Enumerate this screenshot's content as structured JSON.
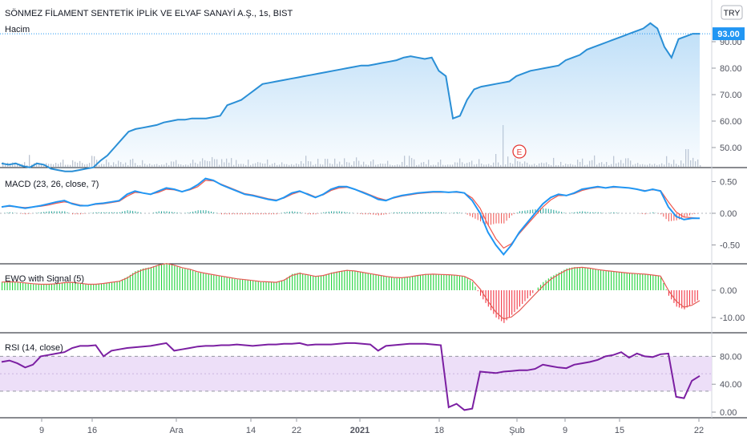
{
  "colors": {
    "price_line": "#2a8fd6",
    "area_top": "#b9dcf7",
    "volume": "#bcc3d0",
    "macd": "#2196f3",
    "signal": "#f0574d",
    "hist_pos": "#26a69a",
    "hist_neg": "#ef5350",
    "ewo_pos": "#22d33c",
    "ewo_neg": "#f23645",
    "ewo_signal": "#e55b55",
    "rsi": "#7b1fa2",
    "rsi_band": "#ead9f7",
    "price_label": "#2196f3",
    "earnings": "#e53935"
  },
  "header": {
    "title": "SÖNMEZ FİLAMENT SENTETİK İPLİK VE ELYAF SANAYİ A.Ş., 1s, BIST",
    "volume_label": "Hacim",
    "currency": "TRY"
  },
  "time_axis": {
    "labels": [
      "9",
      "16",
      "Ara",
      "14",
      "22",
      "2021",
      "18",
      "Şub",
      "9",
      "15",
      "22"
    ],
    "bold": [
      "2021"
    ]
  },
  "chart_data": [
    {
      "type": "area",
      "name": "price",
      "y_ticks": [
        "50.00",
        "60.00",
        "70.00",
        "80.00",
        "90.00"
      ],
      "last_value": "93.00",
      "earnings_marker": "E",
      "values": [
        44,
        43.5,
        44,
        43,
        42.5,
        44,
        43.5,
        42,
        41.5,
        41,
        41,
        41.5,
        42,
        42.5,
        45,
        47,
        50,
        53,
        56,
        57,
        57.5,
        58,
        58.5,
        59.5,
        60,
        60.5,
        60.5,
        61,
        61,
        61,
        61.5,
        62,
        66,
        67,
        68,
        70,
        72,
        74,
        74.5,
        75,
        75.5,
        76,
        76.5,
        77,
        77.5,
        78,
        78.5,
        79,
        79.5,
        80,
        80.5,
        81,
        81,
        81.5,
        82,
        82.5,
        83,
        84,
        84.5,
        84,
        83.5,
        84,
        79,
        77,
        61,
        62,
        68,
        72,
        73,
        73.5,
        74,
        74.5,
        75,
        77,
        78,
        79,
        79.5,
        80,
        80.5,
        81,
        83,
        84,
        85,
        87,
        88,
        89,
        90,
        91,
        92,
        93,
        94,
        95,
        97,
        95,
        88,
        84,
        91,
        92,
        93,
        93
      ]
    },
    {
      "type": "line",
      "name": "MACD (23, 26, close, 7)",
      "y_ticks": [
        "0.50",
        "0.00",
        "-0.50"
      ],
      "series": [
        {
          "name": "MACD",
          "values": [
            0.1,
            0.12,
            0.1,
            0.08,
            0.1,
            0.12,
            0.15,
            0.18,
            0.2,
            0.15,
            0.12,
            0.12,
            0.15,
            0.16,
            0.18,
            0.2,
            0.3,
            0.35,
            0.32,
            0.3,
            0.35,
            0.4,
            0.38,
            0.34,
            0.38,
            0.45,
            0.55,
            0.52,
            0.45,
            0.4,
            0.35,
            0.3,
            0.28,
            0.25,
            0.22,
            0.2,
            0.25,
            0.32,
            0.35,
            0.3,
            0.25,
            0.3,
            0.38,
            0.42,
            0.42,
            0.38,
            0.33,
            0.28,
            0.22,
            0.2,
            0.25,
            0.28,
            0.3,
            0.32,
            0.33,
            0.34,
            0.34,
            0.33,
            0.34,
            0.32,
            0.2,
            0.0,
            -0.3,
            -0.5,
            -0.65,
            -0.5,
            -0.3,
            -0.15,
            0.0,
            0.15,
            0.25,
            0.3,
            0.28,
            0.32,
            0.38,
            0.4,
            0.42,
            0.4,
            0.42,
            0.41,
            0.4,
            0.38,
            0.35,
            0.38,
            0.35,
            0.1,
            -0.05,
            -0.1,
            -0.08,
            -0.08
          ]
        },
        {
          "name": "Signal",
          "values": [
            0.1,
            0.11,
            0.1,
            0.09,
            0.1,
            0.11,
            0.13,
            0.16,
            0.18,
            0.16,
            0.13,
            0.12,
            0.14,
            0.15,
            0.17,
            0.19,
            0.27,
            0.33,
            0.32,
            0.3,
            0.33,
            0.38,
            0.37,
            0.34,
            0.37,
            0.42,
            0.52,
            0.51,
            0.46,
            0.41,
            0.36,
            0.31,
            0.29,
            0.26,
            0.23,
            0.21,
            0.24,
            0.3,
            0.34,
            0.31,
            0.26,
            0.29,
            0.36,
            0.4,
            0.41,
            0.38,
            0.34,
            0.29,
            0.24,
            0.21,
            0.24,
            0.27,
            0.29,
            0.31,
            0.32,
            0.33,
            0.33,
            0.33,
            0.33,
            0.32,
            0.24,
            0.08,
            -0.18,
            -0.4,
            -0.55,
            -0.48,
            -0.32,
            -0.18,
            -0.04,
            0.1,
            0.21,
            0.28,
            0.28,
            0.31,
            0.36,
            0.39,
            0.41,
            0.4,
            0.41,
            0.41,
            0.4,
            0.38,
            0.36,
            0.37,
            0.36,
            0.18,
            0.02,
            -0.06,
            -0.07,
            -0.08
          ]
        }
      ]
    },
    {
      "type": "bar",
      "name": "EWO with Signal (5)",
      "y_ticks": [
        "0.00",
        "-10.00"
      ],
      "values": [
        3,
        3.2,
        3,
        2.5,
        2.2,
        2,
        2.2,
        2.5,
        3,
        3,
        2.5,
        2,
        2.2,
        2.6,
        3,
        3.5,
        5,
        7,
        8,
        8.5,
        9.5,
        10,
        9,
        8,
        7.5,
        6.5,
        6,
        5.5,
        5,
        4.5,
        4,
        3.8,
        3.5,
        3,
        3,
        2.8,
        4,
        6,
        6.5,
        5.5,
        5,
        5.5,
        6.5,
        7,
        7.5,
        7,
        6.5,
        6,
        5.5,
        5,
        4.5,
        4.5,
        5,
        5.5,
        6,
        6,
        5.8,
        5.6,
        5.4,
        5,
        3,
        -2,
        -6,
        -10,
        -12,
        -9,
        -6,
        -3,
        0,
        3,
        5,
        6.5,
        8,
        8.5,
        8.5,
        8,
        7.5,
        7,
        6.8,
        6.5,
        6.2,
        6,
        5.8,
        5.5,
        5,
        -2,
        -6,
        -7,
        -5,
        -3
      ],
      "signal": [
        3,
        3.1,
        3,
        2.7,
        2.4,
        2.2,
        2.2,
        2.4,
        2.8,
        2.9,
        2.6,
        2.2,
        2.2,
        2.5,
        2.9,
        3.3,
        4.5,
        6.3,
        7.5,
        8.2,
        9.2,
        9.8,
        9.2,
        8.3,
        7.7,
        6.8,
        6.2,
        5.7,
        5.2,
        4.7,
        4.2,
        3.9,
        3.6,
        3.2,
        3.1,
        2.9,
        3.7,
        5.4,
        6.2,
        5.7,
        5.1,
        5.4,
        6.2,
        6.8,
        7.3,
        7.1,
        6.6,
        6.1,
        5.6,
        5.1,
        4.7,
        4.6,
        4.9,
        5.4,
        5.8,
        5.9,
        5.8,
        5.7,
        5.5,
        5.1,
        3.7,
        0.5,
        -4,
        -8,
        -10.5,
        -9.8,
        -7.5,
        -4.5,
        -1.5,
        1.5,
        4,
        5.8,
        7.4,
        8.2,
        8.4,
        8.1,
        7.6,
        7.2,
        6.9,
        6.6,
        6.3,
        6.1,
        5.9,
        5.6,
        5.2,
        0,
        -4,
        -6.2,
        -5.5,
        -3.8
      ]
    },
    {
      "type": "line",
      "name": "RSI (14, close)",
      "y_ticks": [
        "80.00",
        "40.00",
        "0.00"
      ],
      "band": [
        30,
        80
      ],
      "values": [
        72,
        74,
        70,
        64,
        68,
        80,
        82,
        84,
        86,
        92,
        95,
        95,
        96,
        80,
        88,
        90,
        92,
        93,
        94,
        95,
        97,
        99,
        88,
        90,
        92,
        94,
        95,
        95,
        96,
        96,
        97,
        96,
        95,
        96,
        97,
        97,
        98,
        98,
        99,
        96,
        97,
        97,
        97,
        98,
        99,
        99,
        98,
        97,
        88,
        95,
        96,
        97,
        98,
        98,
        98,
        97,
        96,
        7,
        12,
        3,
        5,
        58,
        57,
        56,
        58,
        59,
        60,
        60,
        62,
        68,
        66,
        64,
        63,
        68,
        70,
        72,
        75,
        80,
        82,
        86,
        78,
        84,
        80,
        79,
        83,
        84,
        22,
        20,
        45,
        52
      ]
    }
  ]
}
